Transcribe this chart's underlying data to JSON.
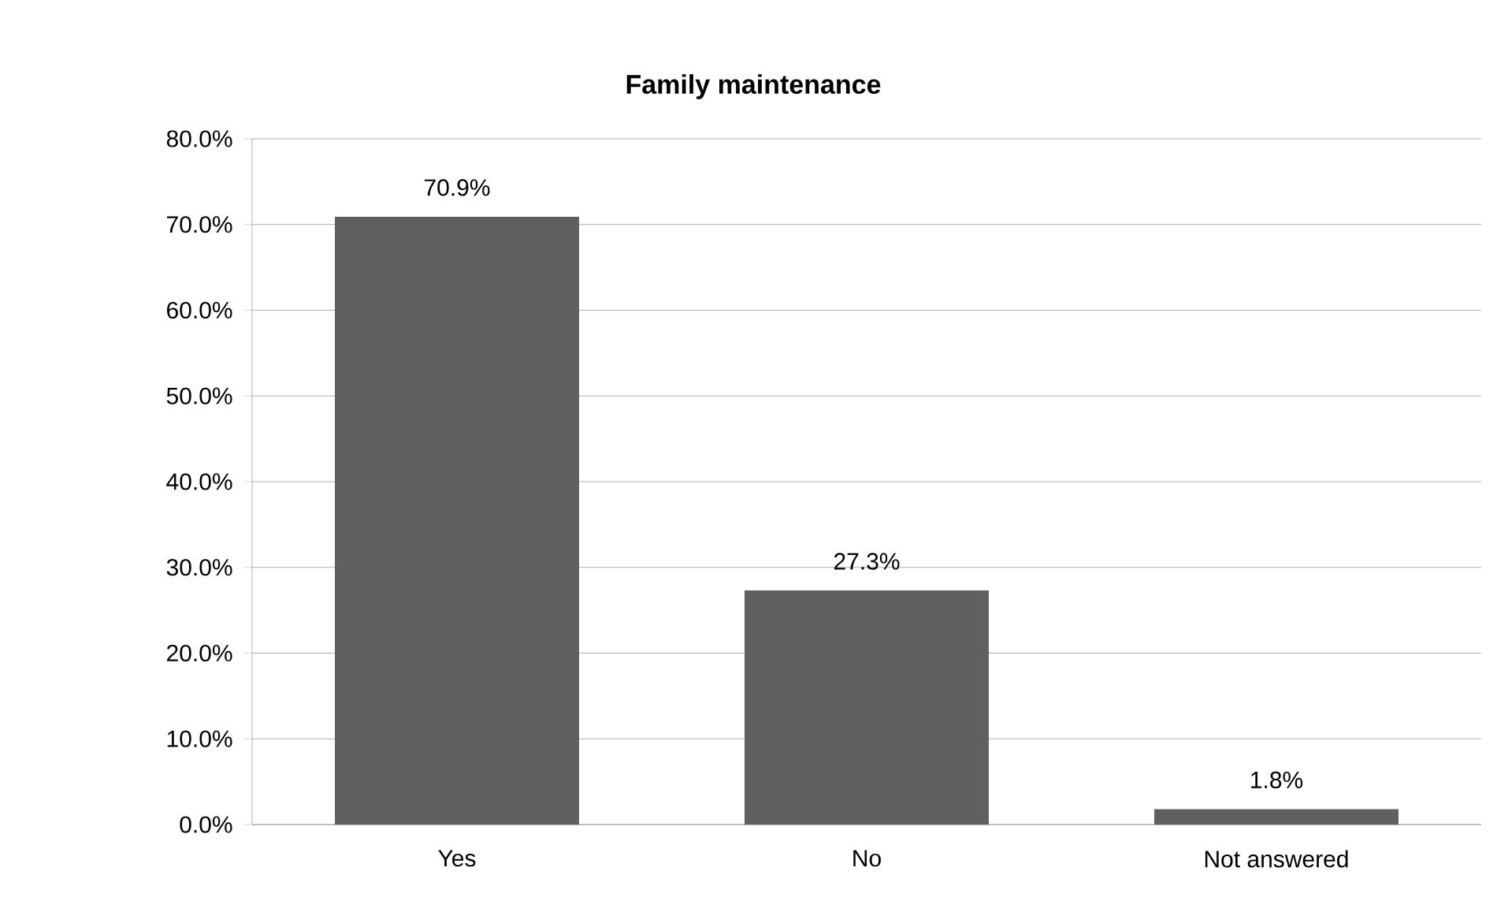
{
  "chart_data": {
    "type": "bar",
    "title": "Family maintenance",
    "categories": [
      "Yes",
      "No",
      "Not answered"
    ],
    "values": [
      70.9,
      27.3,
      1.8
    ],
    "value_labels": [
      "70.9%",
      "27.3%",
      "1.8%"
    ],
    "color": "#606060",
    "ylim": [
      0,
      80
    ],
    "yticks": [
      {
        "value": 0,
        "label": "0.0%"
      },
      {
        "value": 10,
        "label": "10.0%"
      },
      {
        "value": 20,
        "label": "20.0%"
      },
      {
        "value": 30,
        "label": "30.0%"
      },
      {
        "value": 40,
        "label": "40.0%"
      },
      {
        "value": 50,
        "label": "50.0%"
      },
      {
        "value": 60,
        "label": "60.0%"
      },
      {
        "value": 70,
        "label": "70.0%"
      },
      {
        "value": 80,
        "label": "80.0%"
      }
    ],
    "grid": "y"
  }
}
